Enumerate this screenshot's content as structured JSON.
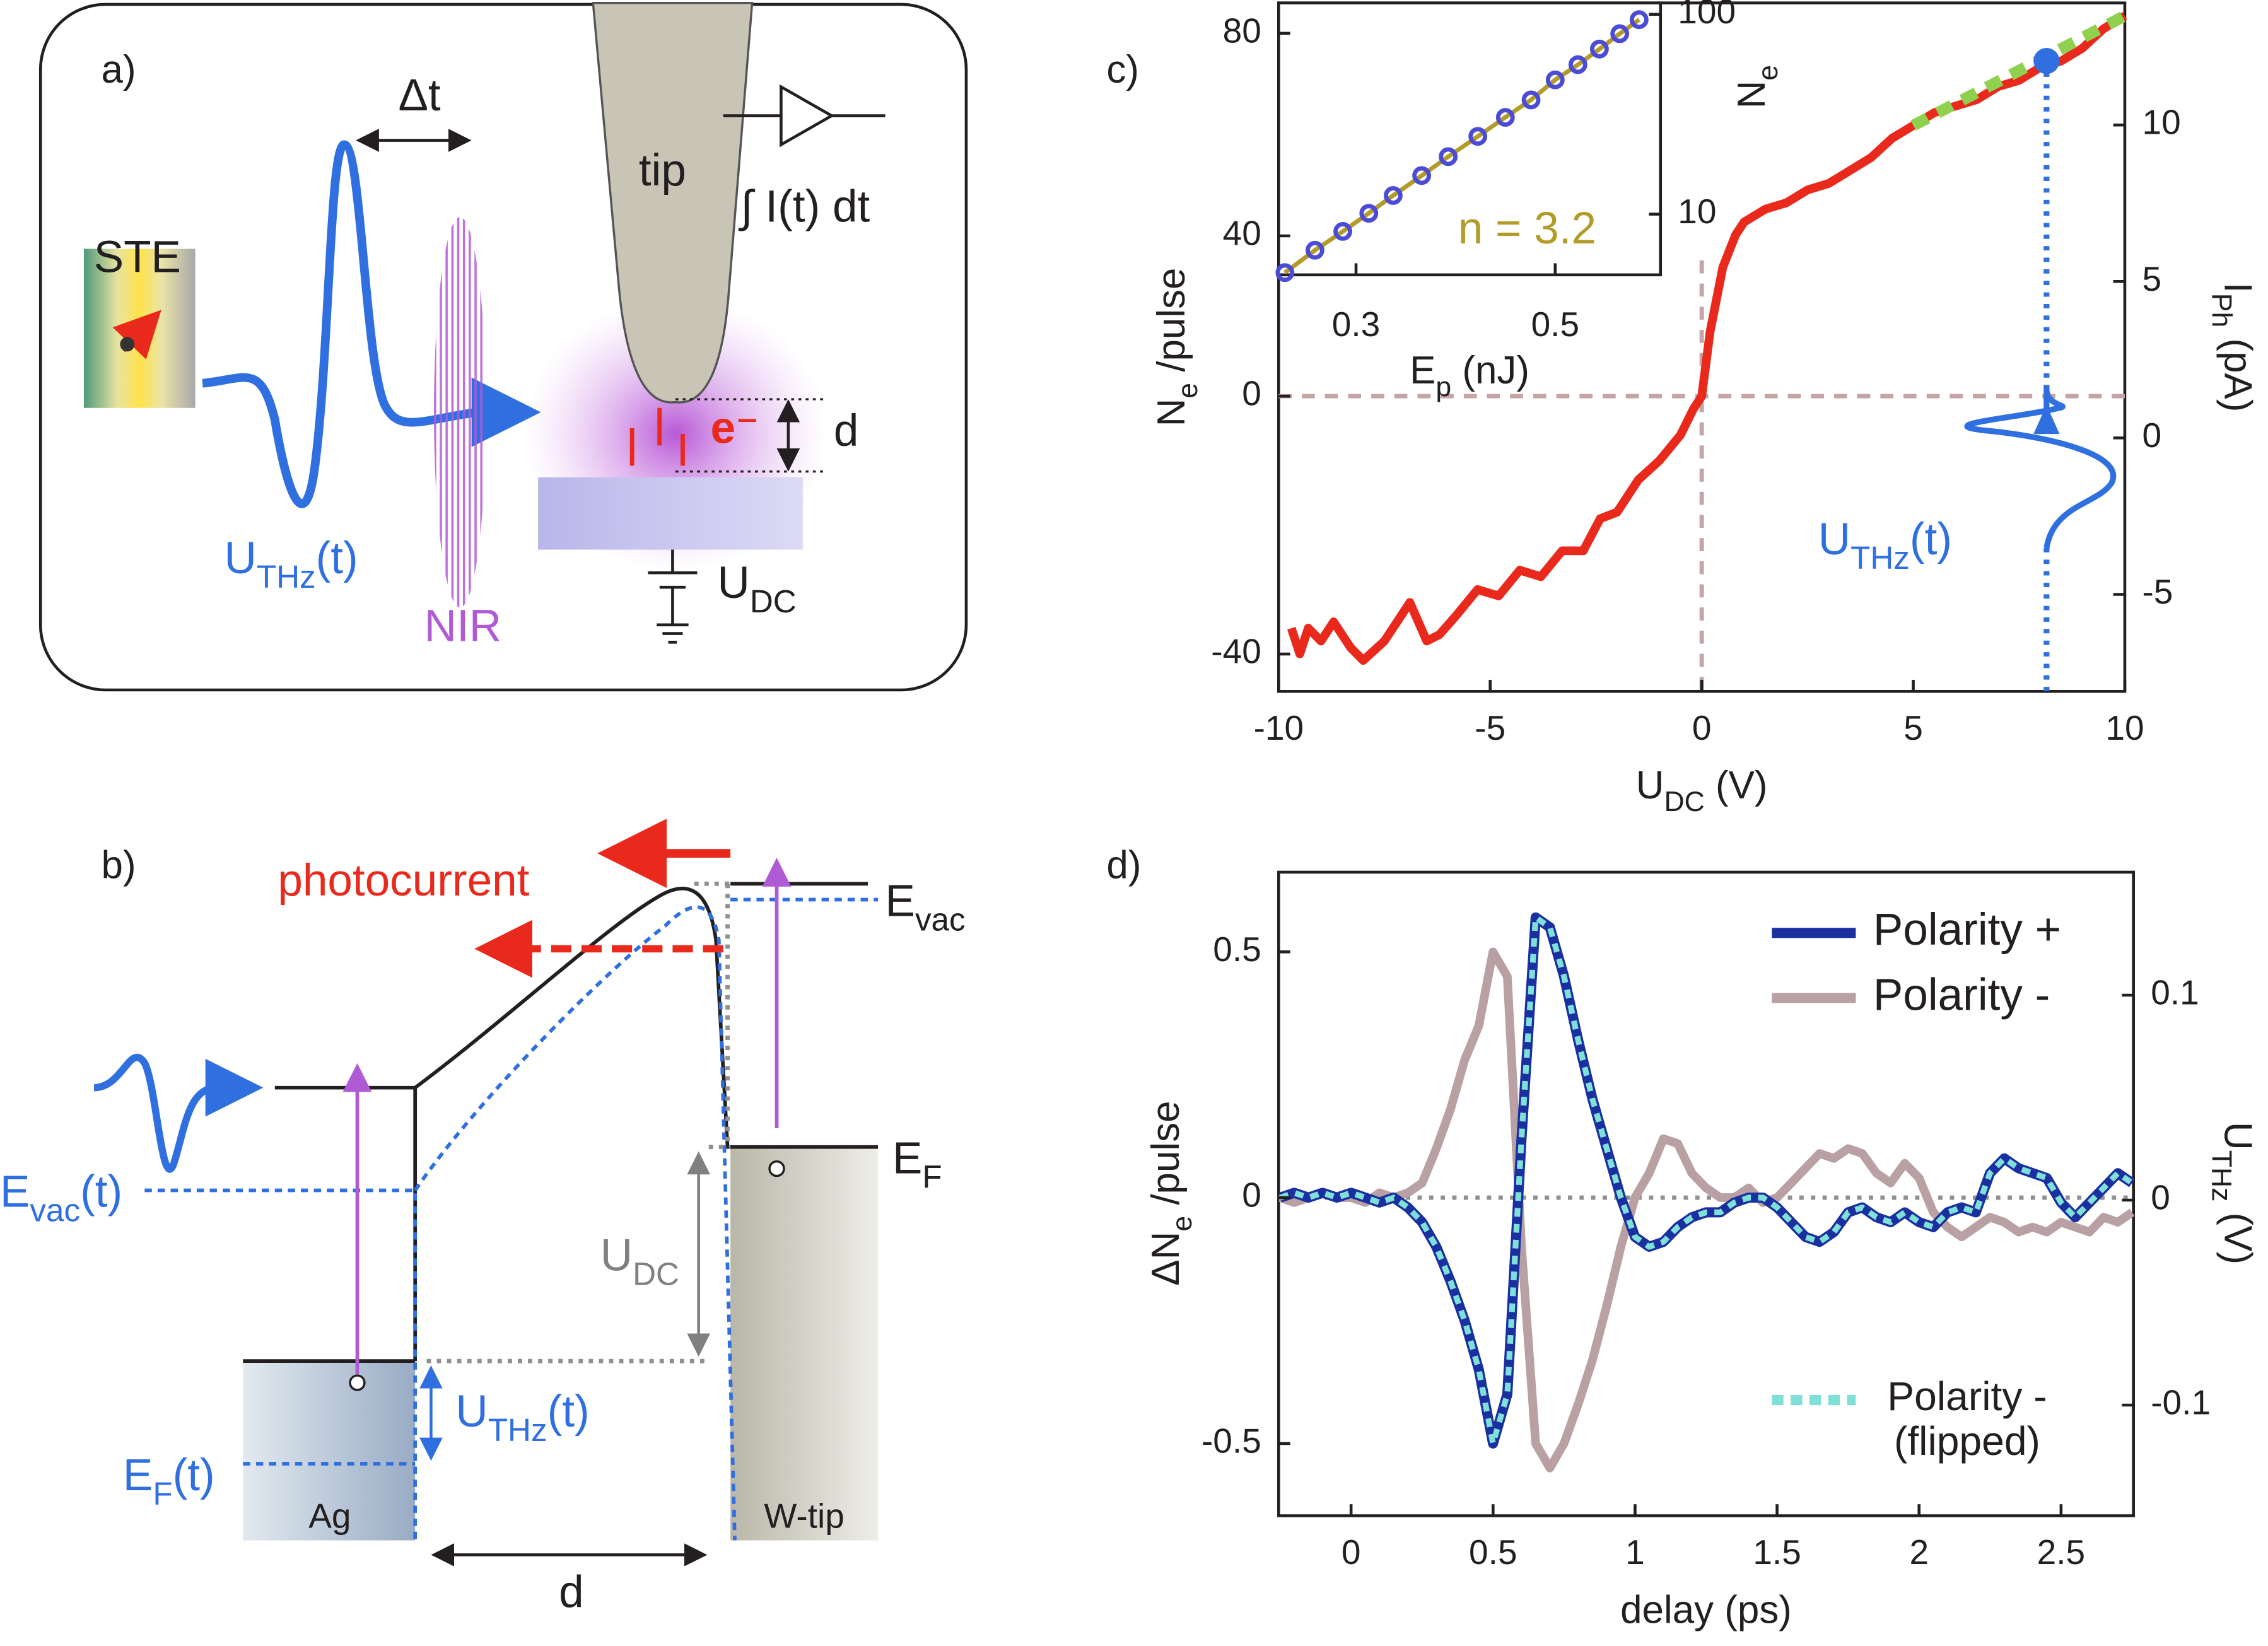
{
  "panel_a": {
    "label": "a)",
    "delta_t": "Δt",
    "source": "STE",
    "tip": "tip",
    "integral": "∫ I(t) dt",
    "thz": [
      "U",
      "THz",
      "(t)"
    ],
    "nir": "NIR",
    "electron": "e⁻",
    "gap": "d",
    "bias": [
      "U",
      "DC"
    ]
  },
  "panel_b": {
    "label": "b)",
    "photocurrent": "photocurrent",
    "e_vac": [
      "E",
      "vac"
    ],
    "e_f": [
      "E",
      "F"
    ],
    "e_vac_t": [
      "E",
      "vac",
      "(t)"
    ],
    "bias": [
      "U",
      "DC"
    ],
    "thz": [
      "U",
      "THz",
      "(t)"
    ],
    "e_f_t": [
      "E",
      "F",
      "(t)"
    ],
    "sample": "Ag",
    "tip": "W-tip",
    "gap": "d"
  },
  "chart_data": [
    {
      "type": "line",
      "panel_label": "c)",
      "x": [
        -9.7,
        -9.5,
        -9.3,
        -9,
        -8.7,
        -8.3,
        -8,
        -7.5,
        -7.2,
        -6.9,
        -6.5,
        -6.2,
        -5.8,
        -5.3,
        -4.8,
        -4.3,
        -3.8,
        -3.3,
        -2.8,
        -2.4,
        -2,
        -1.5,
        -1,
        -0.5,
        -0.2,
        0,
        0.2,
        0.5,
        0.8,
        1,
        1.5,
        2,
        2.5,
        3,
        3.5,
        4,
        4.5,
        5,
        5.5,
        6,
        6.5,
        7,
        7.5,
        8,
        8.5,
        9,
        9.5,
        10
      ],
      "values": [
        -36,
        -40,
        -36,
        -38,
        -35,
        -39,
        -41,
        -38,
        -35,
        -32,
        -38,
        -37,
        -34,
        -30,
        -31,
        -27,
        -28,
        -24,
        -24,
        -19,
        -18,
        -13,
        -10,
        -6,
        -2,
        0,
        10,
        20,
        25,
        27,
        29,
        30,
        32,
        33,
        35,
        37,
        40,
        42,
        44,
        45,
        46,
        48,
        49,
        51,
        52,
        54,
        57,
        59
      ],
      "color": "#e8291c",
      "fit": {
        "x": [
          5,
          10
        ],
        "values": [
          42,
          59
        ],
        "color": "#8fd14f"
      },
      "marker": {
        "x": 8.15,
        "value": 52,
        "color": "#2f6fe0"
      },
      "xlim": [
        -10,
        10
      ],
      "xticks": [
        -10,
        -5,
        0,
        5,
        10
      ],
      "ylim": [
        -45.8,
        61
      ],
      "yticks": [
        -40,
        0
      ],
      "y2lim": [
        -8.1,
        13.9
      ],
      "y2ticks": [
        -5,
        0,
        5,
        10
      ],
      "xlabel": [
        "U",
        "DC",
        " (V)"
      ],
      "ylabel": [
        "N",
        "e",
        " /pulse"
      ],
      "y2label": [
        "I",
        "Ph",
        " (pA)"
      ],
      "annotation": [
        "U",
        "THz",
        "(t)"
      ]
    },
    {
      "type": "scatter",
      "x": [
        0.25,
        0.27,
        0.29,
        0.31,
        0.33,
        0.355,
        0.38,
        0.41,
        0.44,
        0.47,
        0.5,
        0.53,
        0.56,
        0.59,
        0.62
      ],
      "values": [
        5.1,
        6.6,
        8.2,
        10.1,
        12.4,
        15.6,
        19.4,
        24.5,
        30.5,
        37.3,
        47,
        56,
        67,
        80,
        94
      ],
      "color": "#4b4bd6",
      "fit_color": "#b39b2a",
      "xlim": [
        0.246,
        0.655
      ],
      "xticks": [
        0.3,
        0.5
      ],
      "log_x": true,
      "ylim": [
        4.97,
        114
      ],
      "yticks": [
        10,
        100
      ],
      "log_y": true,
      "y_left_lim": [
        32.3,
        86
      ],
      "y_left_ticks": [
        40,
        80
      ],
      "xlabel": [
        "E",
        "p",
        " (nJ)"
      ],
      "ylabel": [
        "N",
        "e"
      ],
      "annotation": "n = 3.2"
    },
    {
      "type": "line",
      "panel_label": "d)",
      "x": [
        -0.25,
        -0.2,
        -0.15,
        -0.1,
        -0.05,
        0,
        0.05,
        0.1,
        0.15,
        0.2,
        0.25,
        0.3,
        0.35,
        0.4,
        0.45,
        0.5,
        0.55,
        0.6,
        0.65,
        0.7,
        0.75,
        0.8,
        0.85,
        0.9,
        0.95,
        1,
        1.05,
        1.1,
        1.15,
        1.2,
        1.25,
        1.3,
        1.35,
        1.4,
        1.45,
        1.5,
        1.55,
        1.6,
        1.65,
        1.7,
        1.75,
        1.8,
        1.85,
        1.9,
        1.95,
        2,
        2.05,
        2.1,
        2.15,
        2.2,
        2.25,
        2.3,
        2.35,
        2.4,
        2.45,
        2.5,
        2.55,
        2.6,
        2.65,
        2.7,
        2.75
      ],
      "series": [
        {
          "name": "Polarity +",
          "color": "#1a2fa0",
          "values": [
            0,
            0.01,
            0,
            0.01,
            0,
            0.01,
            0,
            -0.01,
            0,
            -0.02,
            -0.05,
            -0.1,
            -0.17,
            -0.25,
            -0.35,
            -0.5,
            -0.4,
            0.12,
            0.57,
            0.55,
            0.45,
            0.32,
            0.2,
            0.1,
            0,
            -0.08,
            -0.1,
            -0.09,
            -0.06,
            -0.04,
            -0.03,
            -0.03,
            -0.01,
            0,
            0,
            -0.02,
            -0.05,
            -0.08,
            -0.09,
            -0.07,
            -0.03,
            -0.02,
            -0.04,
            -0.05,
            -0.03,
            -0.05,
            -0.06,
            -0.03,
            -0.02,
            -0.03,
            0.05,
            0.08,
            0.06,
            0.05,
            0.04,
            -0.01,
            -0.04,
            -0.01,
            0.02,
            0.05,
            0.03
          ]
        },
        {
          "name": "Polarity -",
          "color": "#b8a0a3",
          "values": [
            0,
            -0.01,
            0,
            0.01,
            0,
            0,
            -0.01,
            0.01,
            0,
            0.01,
            0.03,
            0.1,
            0.18,
            0.28,
            0.35,
            0.5,
            0.45,
            -0.1,
            -0.5,
            -0.55,
            -0.5,
            -0.42,
            -0.33,
            -0.22,
            -0.1,
            0,
            0.05,
            0.12,
            0.11,
            0.05,
            0.02,
            0,
            0,
            0.02,
            -0.01,
            0,
            0.03,
            0.06,
            0.09,
            0.08,
            0.1,
            0.09,
            0.05,
            0.03,
            0.07,
            0.04,
            -0.03,
            -0.06,
            -0.08,
            -0.06,
            -0.04,
            -0.05,
            -0.07,
            -0.06,
            -0.07,
            -0.05,
            -0.06,
            -0.07,
            -0.04,
            -0.05,
            -0.03
          ]
        },
        {
          "name": "Polarity - (flipped)",
          "color": "#7fe0d8",
          "dashed": true,
          "values": [
            0,
            0.01,
            0,
            0.01,
            0,
            0.01,
            0,
            -0.01,
            0,
            -0.02,
            -0.05,
            -0.1,
            -0.17,
            -0.25,
            -0.35,
            -0.5,
            -0.4,
            0.12,
            0.57,
            0.55,
            0.45,
            0.32,
            0.2,
            0.1,
            0,
            -0.08,
            -0.1,
            -0.09,
            -0.06,
            -0.04,
            -0.03,
            -0.03,
            -0.01,
            0,
            0,
            -0.02,
            -0.05,
            -0.08,
            -0.09,
            -0.07,
            -0.03,
            -0.02,
            -0.04,
            -0.05,
            -0.03,
            -0.05,
            -0.06,
            -0.03,
            -0.02,
            -0.03,
            0.05,
            0.08,
            0.06,
            0.05,
            0.04,
            -0.01,
            -0.04,
            -0.01,
            0.02,
            0.05,
            0.03
          ]
        }
      ],
      "xlim": [
        -0.255,
        2.755
      ],
      "xticks": [
        0,
        0.5,
        1,
        1.5,
        2,
        2.5
      ],
      "ylim": [
        -0.647,
        0.662
      ],
      "yticks": [
        -0.5,
        0,
        0.5
      ],
      "y2lim": [
        -0.154,
        0.16
      ],
      "y2ticks": [
        -0.1,
        0,
        0.1
      ],
      "xlabel": "delay (ps)",
      "ylabel": [
        "ΔN",
        "e",
        " /pulse"
      ],
      "y2label": [
        "U",
        "THz",
        " (V)"
      ]
    }
  ]
}
